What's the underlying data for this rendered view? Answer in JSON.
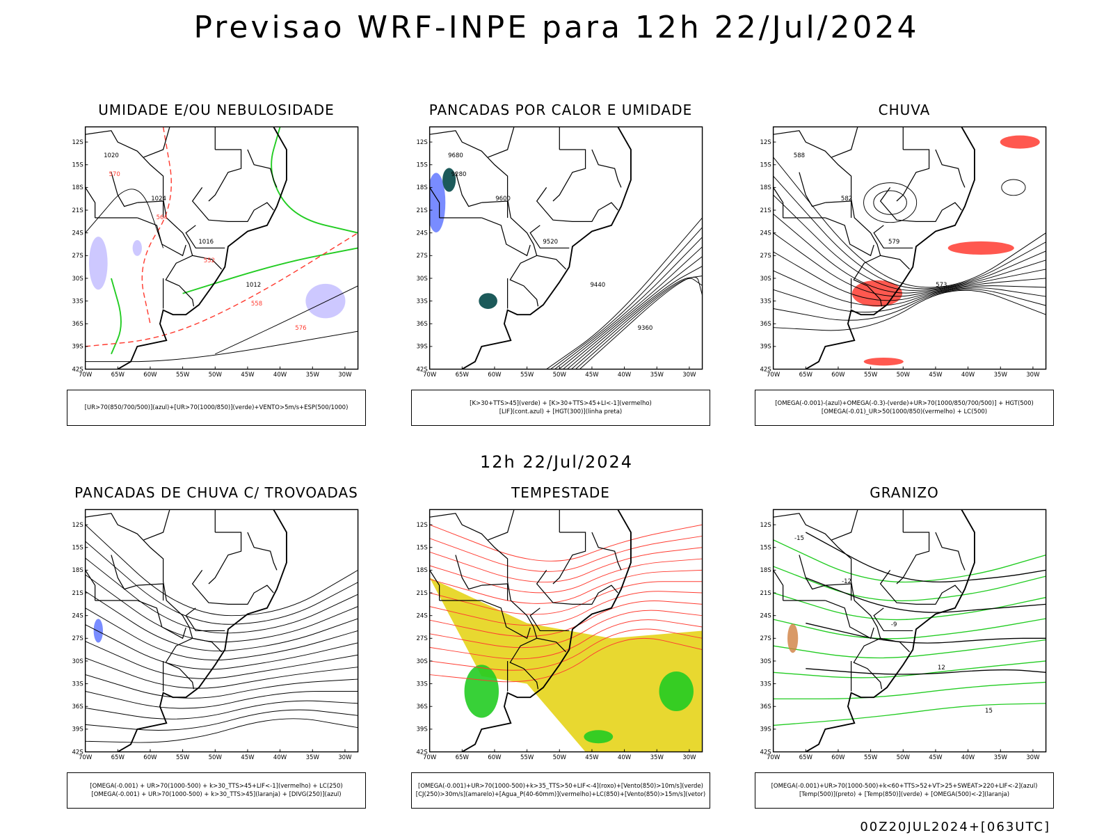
{
  "title": "Previsao WRF-INPE  para 12h 22/Jul/2024",
  "subtitle": "12h 22/Jul/2024",
  "footer": "00Z20JUL2024+[063UTC]",
  "axes": {
    "lat_ticks": [
      "12S",
      "15S",
      "18S",
      "21S",
      "24S",
      "27S",
      "30S",
      "33S",
      "36S",
      "39S",
      "42S"
    ],
    "lon_ticks": [
      "70W",
      "65W",
      "60W",
      "55W",
      "50W",
      "45W",
      "40W",
      "35W",
      "30W"
    ]
  },
  "colors": {
    "red": "#ff3b30",
    "green": "#22cc22",
    "blue": "#2040ff",
    "lavender": "#b8b0ff",
    "yellow": "#e8d830",
    "teal": "#1c5a5a",
    "orange": "#d08040"
  },
  "panels": [
    {
      "title": "UMIDADE E/OU NEBULOSIDADE",
      "legend": [
        "[UR>70(850/700/500)](azul)+[UR>70(1000/850)](verde)+VENTO>5m/s+ESP(500/1000)"
      ],
      "labels": [
        "1020",
        "1024",
        "1016",
        "1012",
        "576",
        "570",
        "564",
        "552",
        "558"
      ]
    },
    {
      "title": "PANCADAS POR CALOR E UMIDADE",
      "legend": [
        "[K>30+TTS>45](verde) + [K>30+TTS>45+LI<-1](vermelho)",
        "[LIF](cont.azul) + [HGT(300)](linha preta)"
      ],
      "labels": [
        "9680",
        "9600",
        "9520",
        "9440",
        "9360",
        "9280"
      ]
    },
    {
      "title": "CHUVA",
      "legend": [
        "[OMEGA(-0.001)-(azul)+OMEGA(-0.3)-(verde)+UR>70(1000/850/700/500)] + HGT(500)",
        "[OMEGA(-0.01)_UR>50(1000/850)(vermelho) + LC(500)"
      ],
      "labels": [
        "588",
        "582",
        "579",
        "573"
      ]
    },
    {
      "title": "PANCADAS DE CHUVA C/ TROVOADAS",
      "legend": [
        "[OMEGA(-0.001) + UR>70(1000-500) + k>30_TTS>45+LIF<-1](vermelho) + LC(250)",
        "[OMEGA(-0.001) + UR>70(1000-500) + k>30_TTS>45](laranja) + [DIVG(250)](azul)"
      ],
      "labels": []
    },
    {
      "title": "TEMPESTADE",
      "legend": [
        "[OMEGA(-0.001)+UR>70(1000-500)+k>35_TTS>50+LIF<-4](roxo)+[Vento(850)>10m/s](verde)",
        "[CJ(250)>30m/s](amarelo)+[Agua_P(40-60mm)](vermelho)+LC(850)+[Vento(850)>15m/s](vetor)"
      ],
      "labels": []
    },
    {
      "title": "GRANIZO",
      "legend": [
        "[OMEGA(-0.001)+UR>70(1000-500)+k<60+TTS>52+VT>25+SWEAT>220+LIF<-2](azul)",
        "[Temp(500)](preto) + [Temp(850)](verde) + [OMEGA(500)<-2](laranja)"
      ],
      "labels": [
        "-15",
        "-12",
        "-9",
        "12",
        "15"
      ]
    }
  ]
}
